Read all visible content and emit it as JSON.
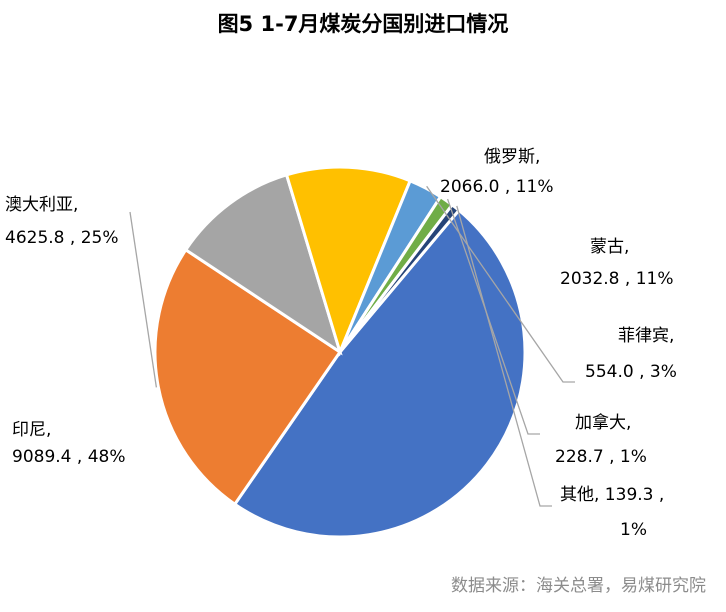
{
  "chart_data": {
    "type": "pie",
    "title": "图5 1-7月煤炭分国别进口情况",
    "slices": [
      {
        "name": "印尼",
        "value": 9089.4,
        "percent": "48%",
        "value_label": "9089.4",
        "color": "#4472C4"
      },
      {
        "name": "澳大利亚",
        "value": 4625.8,
        "percent": "25%",
        "value_label": "4625.8",
        "color": "#ED7D31"
      },
      {
        "name": "俄罗斯",
        "value": 2066.0,
        "percent": "11%",
        "value_label": "2066.0",
        "color": "#A5A5A5"
      },
      {
        "name": "蒙古",
        "value": 2032.8,
        "percent": "11%",
        "value_label": "2032.8",
        "color": "#FFC000"
      },
      {
        "name": "菲律宾",
        "value": 554.0,
        "percent": "3%",
        "value_label": "554.0",
        "color": "#5B9BD5"
      },
      {
        "name": "加拿大",
        "value": 228.7,
        "percent": "1%",
        "value_label": "228.7",
        "color": "#70AD47"
      },
      {
        "name": "其他",
        "value": 139.3,
        "percent": "1%",
        "value_label": "139.3",
        "color": "#264478"
      }
    ],
    "legend": "none"
  },
  "source": "数据来源：海关总署，易煤研究院"
}
